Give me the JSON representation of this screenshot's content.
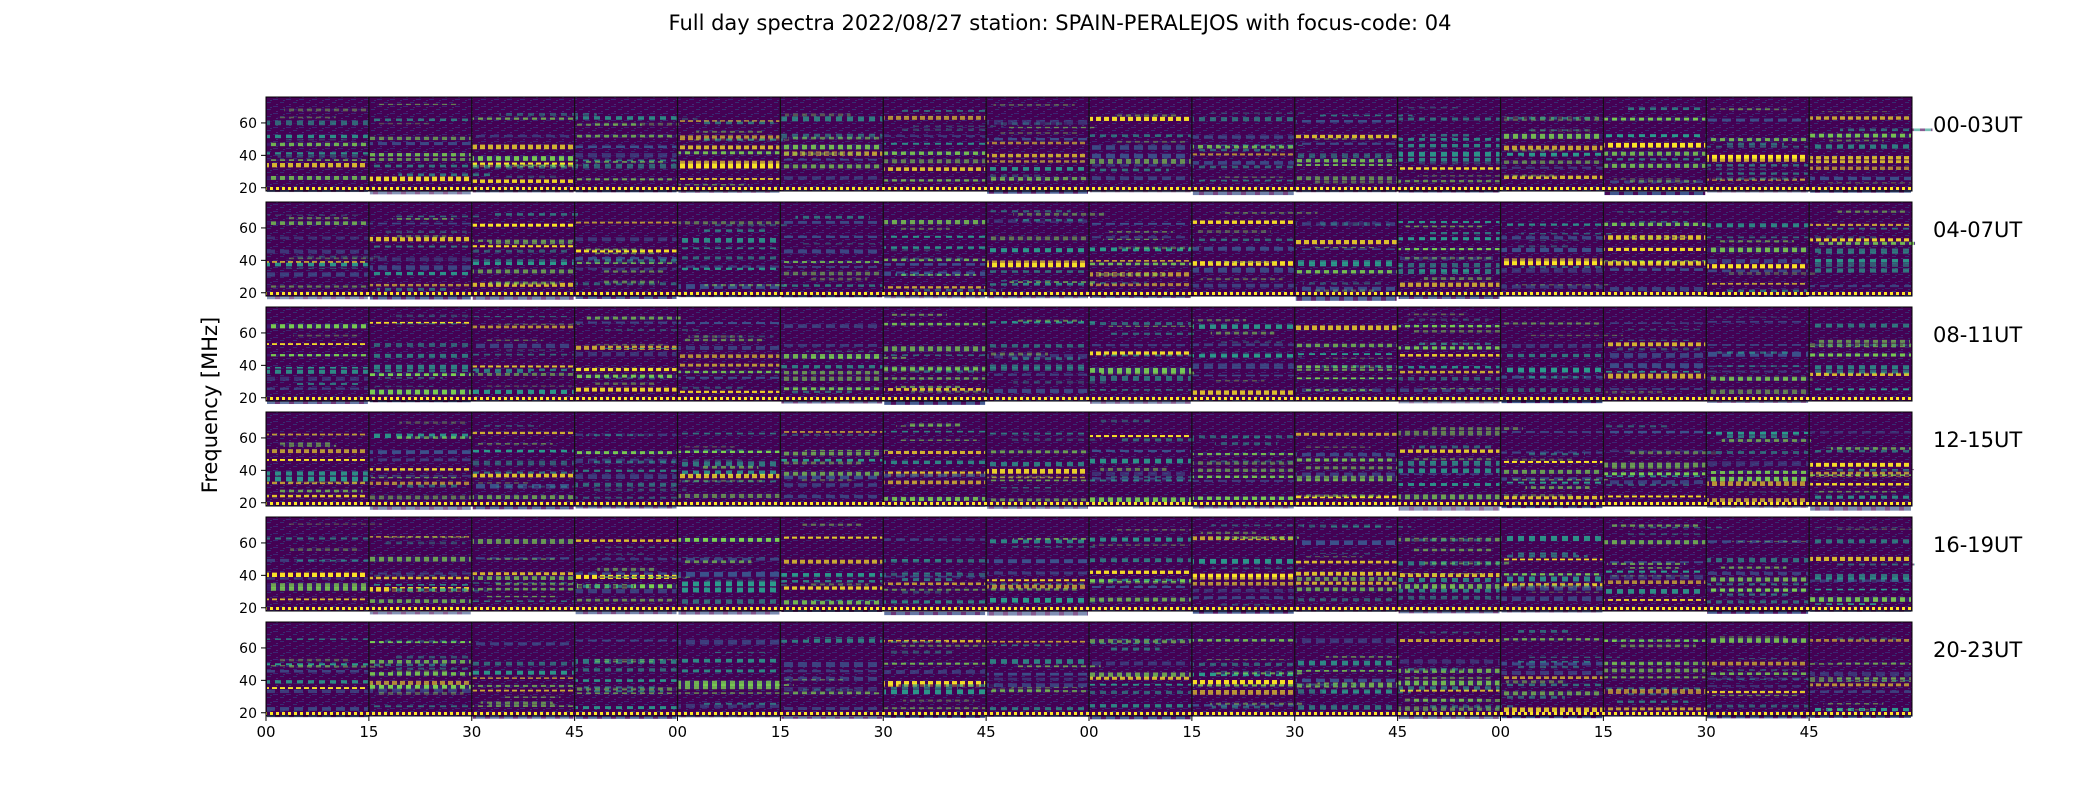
{
  "chart_data": {
    "type": "heatmap",
    "title": "Full day spectra 2022/08/27 station: SPAIN-PERALEJOS with focus-code: 04",
    "ylabel": "Frequency [MHz]",
    "xlabel": "",
    "ylim": [
      18,
      76
    ],
    "y_ticks": [
      "20",
      "40",
      "60"
    ],
    "y_tick_values": [
      20,
      40,
      60
    ],
    "x_ticks": [
      "00",
      "15",
      "30",
      "45",
      "00",
      "15",
      "30",
      "45",
      "00",
      "15",
      "30",
      "45",
      "00",
      "15",
      "30",
      "45"
    ],
    "segments_per_row": 16,
    "colormap": "viridis",
    "colors": {
      "background": "#440154",
      "low": "#3b1a6e",
      "mid": "#21908d",
      "high": "#fde725"
    },
    "rows": [
      {
        "label": "00-03UT",
        "bands_mhz": [
          63,
          52,
          47,
          41,
          37,
          34,
          26,
          19
        ]
      },
      {
        "label": "04-07UT",
        "bands_mhz": [
          64,
          54,
          48,
          41,
          38,
          34,
          25,
          19
        ]
      },
      {
        "label": "08-11UT",
        "bands_mhz": [
          66,
          53,
          48,
          40,
          38,
          34,
          25,
          19
        ]
      },
      {
        "label": "12-15UT",
        "bands_mhz": [
          63,
          52,
          46,
          40,
          37,
          33,
          24,
          19
        ]
      },
      {
        "label": "16-19UT",
        "bands_mhz": [
          63,
          50,
          42,
          39,
          36,
          33,
          26,
          19
        ]
      },
      {
        "label": "20-23UT",
        "bands_mhz": [
          65,
          52,
          46,
          41,
          37,
          34,
          24,
          19
        ]
      }
    ]
  }
}
